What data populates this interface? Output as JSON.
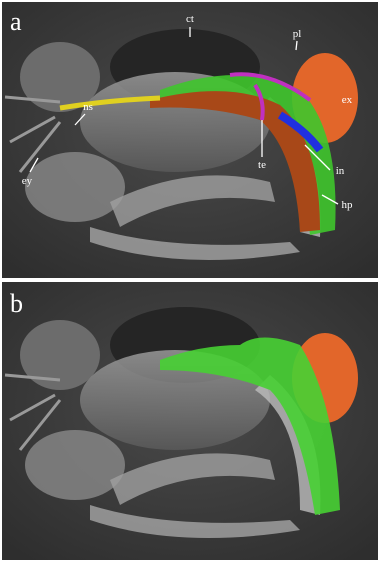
{
  "panels": [
    {
      "label": "a",
      "annotations": [
        "ct",
        "pl",
        "ns",
        "ex",
        "ey",
        "te",
        "in",
        "hp"
      ]
    },
    {
      "label": "b"
    }
  ]
}
